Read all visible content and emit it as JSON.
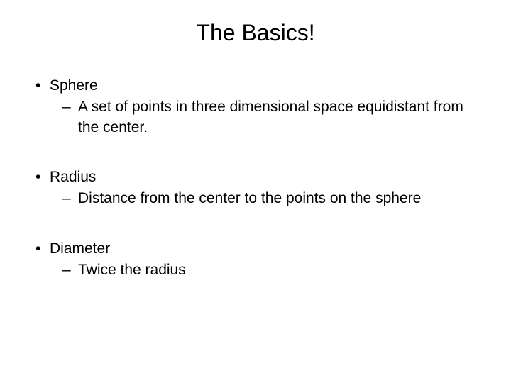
{
  "slide": {
    "title": "The Basics!",
    "background_color": "#ffffff",
    "text_color": "#000000",
    "title_fontsize": 32,
    "body_fontsize": 21,
    "font_family": "Arial",
    "bullets": [
      {
        "term": "Sphere",
        "definition": "A set of points in three dimensional space equidistant from the center."
      },
      {
        "term": "Radius",
        "definition": "Distance from the center to the points on the sphere"
      },
      {
        "term": "Diameter",
        "definition": "Twice the radius"
      }
    ]
  }
}
